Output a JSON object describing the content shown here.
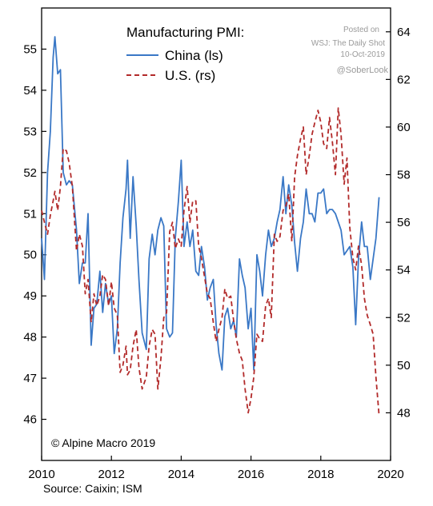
{
  "chart_data": {
    "type": "line",
    "title": "Manufacturing PMI:",
    "legend": {
      "placement": "top-left",
      "entries": [
        {
          "label": "China (ls)",
          "color": "#3a78c6",
          "style": "solid"
        },
        {
          "label": "U.S. (rs)",
          "color": "#b22a2a",
          "style": "dashed"
        }
      ]
    },
    "x_axis": {
      "range": [
        2010,
        2020
      ],
      "ticks": [
        "2010",
        "2012",
        "2014",
        "2016",
        "2018",
        "2020"
      ]
    },
    "y_left": {
      "range": [
        45.0,
        56.0
      ],
      "ticks": [
        "46",
        "47",
        "48",
        "49",
        "50",
        "51",
        "52",
        "53",
        "54",
        "55"
      ]
    },
    "y_right": {
      "range": [
        46.0,
        65.0
      ],
      "ticks": [
        "48",
        "50",
        "52",
        "54",
        "56",
        "58",
        "60",
        "62",
        "64"
      ]
    },
    "series": [
      {
        "name": "China (ls)",
        "axis": "left",
        "points": [
          [
            2010.0,
            50.4
          ],
          [
            2010.08,
            49.4
          ],
          [
            2010.17,
            52.0
          ],
          [
            2010.25,
            53.0
          ],
          [
            2010.33,
            54.8
          ],
          [
            2010.38,
            55.3
          ],
          [
            2010.46,
            54.4
          ],
          [
            2010.54,
            54.5
          ],
          [
            2010.62,
            52.0
          ],
          [
            2010.71,
            51.7
          ],
          [
            2010.79,
            51.8
          ],
          [
            2010.88,
            51.7
          ],
          [
            2011.0,
            50.6
          ],
          [
            2011.08,
            49.3
          ],
          [
            2011.17,
            49.8
          ],
          [
            2011.25,
            49.8
          ],
          [
            2011.33,
            51.0
          ],
          [
            2011.42,
            47.8
          ],
          [
            2011.5,
            48.7
          ],
          [
            2011.58,
            48.8
          ],
          [
            2011.67,
            49.6
          ],
          [
            2011.75,
            48.6
          ],
          [
            2011.83,
            49.3
          ],
          [
            2011.92,
            48.8
          ],
          [
            2012.0,
            49.0
          ],
          [
            2012.08,
            47.6
          ],
          [
            2012.17,
            48.2
          ],
          [
            2012.25,
            49.8
          ],
          [
            2012.33,
            50.9
          ],
          [
            2012.42,
            51.6
          ],
          [
            2012.46,
            52.3
          ],
          [
            2012.54,
            50.4
          ],
          [
            2012.62,
            51.9
          ],
          [
            2012.71,
            50.7
          ],
          [
            2012.79,
            49.4
          ],
          [
            2012.88,
            48.1
          ],
          [
            2013.0,
            47.7
          ],
          [
            2013.08,
            49.9
          ],
          [
            2013.17,
            50.5
          ],
          [
            2013.25,
            50.0
          ],
          [
            2013.33,
            50.6
          ],
          [
            2013.42,
            50.9
          ],
          [
            2013.5,
            50.7
          ],
          [
            2013.58,
            48.2
          ],
          [
            2013.67,
            48.0
          ],
          [
            2013.75,
            48.1
          ],
          [
            2013.83,
            50.4
          ],
          [
            2013.92,
            51.3
          ],
          [
            2014.0,
            52.3
          ],
          [
            2014.08,
            50.2
          ],
          [
            2014.17,
            50.8
          ],
          [
            2014.25,
            50.2
          ],
          [
            2014.33,
            50.6
          ],
          [
            2014.42,
            49.6
          ],
          [
            2014.5,
            49.5
          ],
          [
            2014.58,
            50.2
          ],
          [
            2014.67,
            49.7
          ],
          [
            2014.75,
            48.9
          ],
          [
            2014.83,
            49.2
          ],
          [
            2014.92,
            49.4
          ],
          [
            2015.0,
            48.3
          ],
          [
            2015.08,
            47.6
          ],
          [
            2015.17,
            47.2
          ],
          [
            2015.25,
            48.5
          ],
          [
            2015.33,
            48.7
          ],
          [
            2015.42,
            48.2
          ],
          [
            2015.5,
            48.4
          ],
          [
            2015.58,
            48.0
          ],
          [
            2015.67,
            49.9
          ],
          [
            2015.75,
            49.5
          ],
          [
            2015.83,
            49.2
          ],
          [
            2015.92,
            48.2
          ],
          [
            2016.0,
            48.7
          ],
          [
            2016.08,
            47.2
          ],
          [
            2016.17,
            50.0
          ],
          [
            2016.25,
            49.6
          ],
          [
            2016.33,
            49.0
          ],
          [
            2016.42,
            50.0
          ],
          [
            2016.5,
            50.6
          ],
          [
            2016.58,
            50.2
          ],
          [
            2016.67,
            50.4
          ],
          [
            2016.75,
            50.8
          ],
          [
            2016.83,
            51.1
          ],
          [
            2016.92,
            51.9
          ],
          [
            2017.0,
            51.0
          ],
          [
            2017.08,
            51.7
          ],
          [
            2017.17,
            51.2
          ],
          [
            2017.25,
            50.3
          ],
          [
            2017.33,
            49.6
          ],
          [
            2017.42,
            50.4
          ],
          [
            2017.5,
            50.8
          ],
          [
            2017.58,
            51.6
          ],
          [
            2017.67,
            51.0
          ],
          [
            2017.75,
            51.0
          ],
          [
            2017.83,
            50.8
          ],
          [
            2017.92,
            51.5
          ],
          [
            2018.0,
            51.5
          ],
          [
            2018.08,
            51.6
          ],
          [
            2018.17,
            51.0
          ],
          [
            2018.25,
            51.1
          ],
          [
            2018.33,
            51.1
          ],
          [
            2018.42,
            51.0
          ],
          [
            2018.5,
            50.8
          ],
          [
            2018.58,
            50.6
          ],
          [
            2018.67,
            50.0
          ],
          [
            2018.75,
            50.1
          ],
          [
            2018.83,
            50.2
          ],
          [
            2018.92,
            49.7
          ],
          [
            2019.0,
            48.3
          ],
          [
            2019.08,
            49.9
          ],
          [
            2019.17,
            50.8
          ],
          [
            2019.25,
            50.2
          ],
          [
            2019.33,
            50.2
          ],
          [
            2019.42,
            49.4
          ],
          [
            2019.5,
            49.9
          ],
          [
            2019.58,
            50.4
          ],
          [
            2019.67,
            51.4
          ]
        ]
      },
      {
        "name": "U.S. (rs)",
        "axis": "right",
        "points": [
          [
            2010.0,
            56.5
          ],
          [
            2010.08,
            56.0
          ],
          [
            2010.17,
            55.5
          ],
          [
            2010.25,
            56.3
          ],
          [
            2010.33,
            56.9
          ],
          [
            2010.38,
            57.3
          ],
          [
            2010.46,
            56.5
          ],
          [
            2010.54,
            57.5
          ],
          [
            2010.62,
            59.1
          ],
          [
            2010.71,
            59.0
          ],
          [
            2010.79,
            58.5
          ],
          [
            2010.88,
            57.5
          ],
          [
            2011.0,
            54.8
          ],
          [
            2011.08,
            55.5
          ],
          [
            2011.17,
            55.0
          ],
          [
            2011.25,
            53.0
          ],
          [
            2011.33,
            53.6
          ],
          [
            2011.42,
            51.8
          ],
          [
            2011.5,
            53.0
          ],
          [
            2011.58,
            52.5
          ],
          [
            2011.67,
            52.9
          ],
          [
            2011.75,
            53.8
          ],
          [
            2011.83,
            53.6
          ],
          [
            2011.92,
            52.5
          ],
          [
            2012.0,
            53.5
          ],
          [
            2012.08,
            52.4
          ],
          [
            2012.17,
            52.1
          ],
          [
            2012.25,
            49.7
          ],
          [
            2012.33,
            50.0
          ],
          [
            2012.42,
            50.8
          ],
          [
            2012.46,
            49.6
          ],
          [
            2012.54,
            49.8
          ],
          [
            2012.62,
            50.8
          ],
          [
            2012.71,
            51.5
          ],
          [
            2012.79,
            49.9
          ],
          [
            2012.88,
            49.0
          ],
          [
            2013.0,
            49.5
          ],
          [
            2013.08,
            50.8
          ],
          [
            2013.17,
            51.5
          ],
          [
            2013.25,
            51.3
          ],
          [
            2013.33,
            49.0
          ],
          [
            2013.42,
            50.3
          ],
          [
            2013.5,
            52.0
          ],
          [
            2013.58,
            52.2
          ],
          [
            2013.67,
            55.6
          ],
          [
            2013.75,
            56.0
          ],
          [
            2013.83,
            54.9
          ],
          [
            2013.92,
            55.3
          ],
          [
            2014.0,
            55.0
          ],
          [
            2014.08,
            56.5
          ],
          [
            2014.17,
            57.5
          ],
          [
            2014.25,
            56.0
          ],
          [
            2014.33,
            56.9
          ],
          [
            2014.42,
            56.9
          ],
          [
            2014.5,
            55.0
          ],
          [
            2014.58,
            54.5
          ],
          [
            2014.67,
            53.7
          ],
          [
            2014.75,
            53.0
          ],
          [
            2014.83,
            52.8
          ],
          [
            2014.92,
            51.8
          ],
          [
            2015.0,
            51.0
          ],
          [
            2015.08,
            51.5
          ],
          [
            2015.17,
            52.0
          ],
          [
            2015.25,
            53.2
          ],
          [
            2015.33,
            52.8
          ],
          [
            2015.42,
            52.9
          ],
          [
            2015.5,
            51.9
          ],
          [
            2015.58,
            51.1
          ],
          [
            2015.67,
            50.5
          ],
          [
            2015.75,
            50.2
          ],
          [
            2015.83,
            49.0
          ],
          [
            2015.92,
            48.0
          ],
          [
            2016.0,
            48.6
          ],
          [
            2016.08,
            49.5
          ],
          [
            2016.17,
            51.3
          ],
          [
            2016.25,
            51.1
          ],
          [
            2016.33,
            51.0
          ],
          [
            2016.42,
            52.5
          ],
          [
            2016.5,
            52.8
          ],
          [
            2016.58,
            52.0
          ],
          [
            2016.67,
            55.5
          ],
          [
            2016.75,
            55.2
          ],
          [
            2016.83,
            55.4
          ],
          [
            2016.92,
            56.5
          ],
          [
            2017.0,
            56.7
          ],
          [
            2017.08,
            57.2
          ],
          [
            2017.17,
            55.2
          ],
          [
            2017.25,
            57.9
          ],
          [
            2017.33,
            58.8
          ],
          [
            2017.42,
            59.5
          ],
          [
            2017.5,
            60.0
          ],
          [
            2017.58,
            58.0
          ],
          [
            2017.67,
            58.8
          ],
          [
            2017.75,
            59.7
          ],
          [
            2017.83,
            60.2
          ],
          [
            2017.92,
            60.7
          ],
          [
            2018.0,
            60.2
          ],
          [
            2018.08,
            59.3
          ],
          [
            2018.17,
            59.1
          ],
          [
            2018.25,
            60.4
          ],
          [
            2018.33,
            59.4
          ],
          [
            2018.42,
            58.0
          ],
          [
            2018.5,
            60.8
          ],
          [
            2018.58,
            59.7
          ],
          [
            2018.67,
            57.6
          ],
          [
            2018.75,
            58.7
          ],
          [
            2018.83,
            55.8
          ],
          [
            2018.92,
            54.5
          ],
          [
            2019.0,
            54.0
          ],
          [
            2019.08,
            55.0
          ],
          [
            2019.17,
            54.2
          ],
          [
            2019.25,
            52.8
          ],
          [
            2019.33,
            52.1
          ],
          [
            2019.42,
            51.7
          ],
          [
            2019.5,
            51.3
          ],
          [
            2019.58,
            49.5
          ],
          [
            2019.67,
            47.9
          ]
        ]
      }
    ],
    "annotations": {
      "copyright": "© Alpine Macro 2019",
      "source": "Source: Caixin; ISM"
    },
    "grid": false
  },
  "watermark": {
    "line1": "Posted on",
    "line2": "WSJ: The Daily Shot",
    "line3": "10-Oct-2019",
    "handle": "@SoberLook"
  }
}
